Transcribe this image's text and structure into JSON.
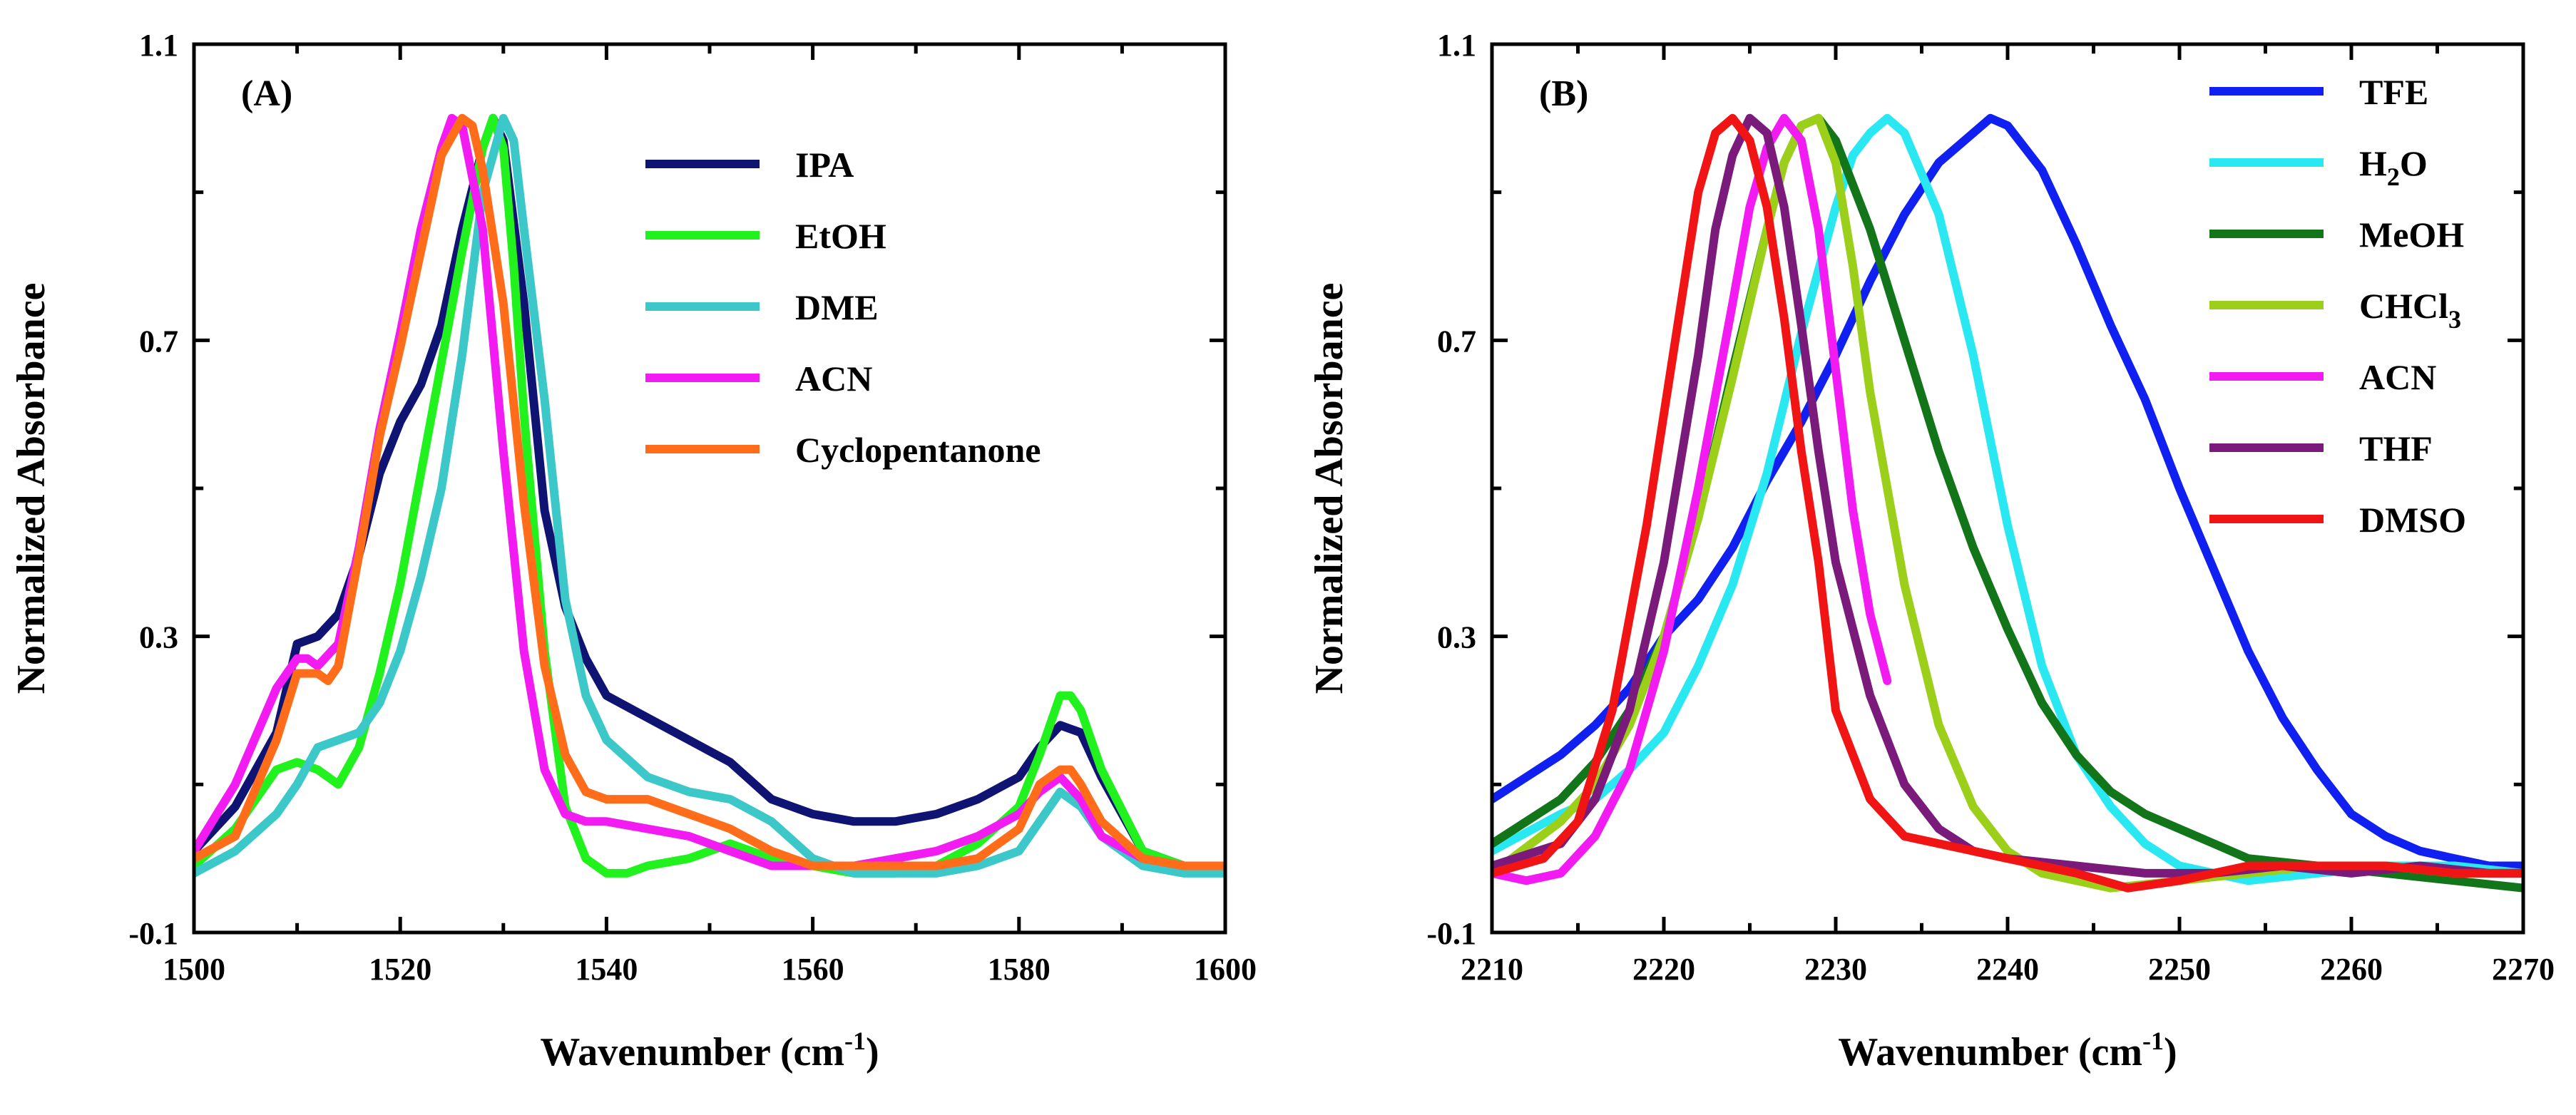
{
  "chart_data": [
    {
      "type": "line",
      "panel_label": "(A)",
      "xlabel": "Wavenumber (cm",
      "xlabel_sup": "-1",
      "xlabel_close": ")",
      "ylabel": "Normalized Absorbance",
      "xlim": [
        1500,
        1600
      ],
      "ylim": [
        -0.1,
        1.1
      ],
      "xticks": [
        1500,
        1520,
        1540,
        1560,
        1580,
        1600
      ],
      "yticks": [
        -0.1,
        0.3,
        0.7,
        1.1
      ],
      "yticks_minor": [
        0.1,
        0.5,
        0.9
      ],
      "ytick_labels": [
        "-0.1",
        "0.3",
        "0.7",
        "1.1"
      ],
      "legend": "top-right",
      "series": [
        {
          "name": "IPA",
          "name_sub": "",
          "color": "#0f1473",
          "x": [
            1500,
            1504,
            1508,
            1510,
            1512,
            1514,
            1516,
            1518,
            1520,
            1522,
            1524,
            1526,
            1528,
            1529,
            1530,
            1532,
            1534,
            1536,
            1538,
            1540,
            1544,
            1548,
            1552,
            1556,
            1560,
            1564,
            1568,
            1572,
            1576,
            1580,
            1582,
            1584,
            1586,
            1588,
            1592,
            1596,
            1600
          ],
          "y": [
            0.01,
            0.07,
            0.17,
            0.29,
            0.3,
            0.33,
            0.41,
            0.52,
            0.59,
            0.64,
            0.72,
            0.85,
            0.96,
            1.0,
            0.97,
            0.75,
            0.47,
            0.34,
            0.27,
            0.22,
            0.19,
            0.16,
            0.13,
            0.08,
            0.06,
            0.05,
            0.05,
            0.06,
            0.08,
            0.11,
            0.15,
            0.18,
            0.17,
            0.11,
            0.01,
            -0.01,
            -0.02
          ]
        },
        {
          "name": "EtOH",
          "name_sub": "",
          "color": "#21f21d",
          "x": [
            1500,
            1504,
            1508,
            1510,
            1512,
            1514,
            1516,
            1518,
            1520,
            1522,
            1524,
            1526,
            1528,
            1529,
            1530,
            1531,
            1532,
            1534,
            1536,
            1538,
            1540,
            1542,
            1544,
            1548,
            1552,
            1556,
            1560,
            1564,
            1568,
            1572,
            1576,
            1580,
            1582,
            1584,
            1585,
            1586,
            1588,
            1592,
            1596,
            1600
          ],
          "y": [
            -0.01,
            0.04,
            0.12,
            0.13,
            0.12,
            0.1,
            0.15,
            0.25,
            0.37,
            0.52,
            0.67,
            0.82,
            0.96,
            1.0,
            0.96,
            0.8,
            0.6,
            0.28,
            0.07,
            0.0,
            -0.02,
            -0.02,
            -0.01,
            0.0,
            0.02,
            0.0,
            -0.01,
            -0.02,
            -0.02,
            -0.01,
            0.02,
            0.07,
            0.14,
            0.22,
            0.22,
            0.2,
            0.12,
            0.01,
            -0.01,
            -0.02
          ]
        },
        {
          "name": "DME",
          "name_sub": "",
          "color": "#3cc8c8",
          "x": [
            1500,
            1504,
            1508,
            1510,
            1512,
            1514,
            1516,
            1518,
            1520,
            1522,
            1524,
            1526,
            1528,
            1530,
            1531,
            1532,
            1534,
            1536,
            1538,
            1540,
            1544,
            1548,
            1552,
            1556,
            1560,
            1564,
            1568,
            1572,
            1576,
            1580,
            1582,
            1584,
            1586,
            1588,
            1592,
            1596,
            1600
          ],
          "y": [
            -0.02,
            0.01,
            0.06,
            0.1,
            0.15,
            0.16,
            0.17,
            0.21,
            0.28,
            0.38,
            0.5,
            0.68,
            0.9,
            1.0,
            0.97,
            0.85,
            0.62,
            0.35,
            0.22,
            0.16,
            0.11,
            0.09,
            0.08,
            0.05,
            0.0,
            -0.02,
            -0.02,
            -0.02,
            -0.01,
            0.01,
            0.05,
            0.09,
            0.07,
            0.03,
            -0.01,
            -0.02,
            -0.02
          ]
        },
        {
          "name": "ACN",
          "name_sub": "",
          "color": "#f21cf2",
          "x": [
            1500,
            1504,
            1508,
            1510,
            1511,
            1512,
            1514,
            1516,
            1518,
            1520,
            1522,
            1524,
            1525,
            1526,
            1528,
            1530,
            1532,
            1534,
            1536,
            1538,
            1540,
            1544,
            1548,
            1552,
            1556,
            1560,
            1564,
            1568,
            1572,
            1576,
            1580,
            1582,
            1584,
            1586,
            1588,
            1592,
            1596,
            1600
          ],
          "y": [
            0.01,
            0.1,
            0.23,
            0.27,
            0.27,
            0.26,
            0.29,
            0.42,
            0.58,
            0.71,
            0.85,
            0.96,
            1.0,
            0.99,
            0.85,
            0.55,
            0.28,
            0.12,
            0.06,
            0.05,
            0.05,
            0.04,
            0.03,
            0.01,
            -0.01,
            -0.01,
            -0.01,
            0.0,
            0.01,
            0.03,
            0.06,
            0.09,
            0.11,
            0.08,
            0.03,
            0.0,
            -0.01,
            -0.01
          ]
        },
        {
          "name": "Cyclopentanone",
          "name_sub": "",
          "color": "#ff6d1a",
          "x": [
            1500,
            1504,
            1508,
            1510,
            1512,
            1513,
            1514,
            1516,
            1518,
            1520,
            1522,
            1524,
            1526,
            1527,
            1528,
            1530,
            1532,
            1534,
            1536,
            1538,
            1540,
            1544,
            1548,
            1552,
            1556,
            1560,
            1564,
            1568,
            1572,
            1576,
            1580,
            1582,
            1584,
            1585,
            1586,
            1588,
            1592,
            1596,
            1600
          ],
          "y": [
            0.0,
            0.03,
            0.16,
            0.25,
            0.25,
            0.24,
            0.26,
            0.41,
            0.57,
            0.69,
            0.82,
            0.95,
            1.0,
            0.99,
            0.93,
            0.75,
            0.48,
            0.26,
            0.14,
            0.09,
            0.08,
            0.08,
            0.06,
            0.04,
            0.01,
            -0.01,
            -0.01,
            -0.01,
            -0.01,
            0.0,
            0.04,
            0.1,
            0.12,
            0.12,
            0.1,
            0.05,
            0.0,
            -0.01,
            -0.01
          ]
        }
      ]
    },
    {
      "type": "line",
      "panel_label": "(B)",
      "xlabel": "Wavenumber (cm",
      "xlabel_sup": "-1",
      "xlabel_close": ")",
      "ylabel": "Normalized Absorbance",
      "xlim": [
        2210,
        2270
      ],
      "ylim": [
        -0.1,
        1.1
      ],
      "xticks": [
        2210,
        2220,
        2230,
        2240,
        2250,
        2260,
        2270
      ],
      "yticks": [
        -0.1,
        0.3,
        0.7,
        1.1
      ],
      "yticks_minor": [
        0.1,
        0.5,
        0.9
      ],
      "ytick_labels": [
        "-0.1",
        "0.3",
        "0.7",
        "1.1"
      ],
      "legend": "top-right",
      "series": [
        {
          "name": "TFE",
          "name_sub": "",
          "color": "#1020f0",
          "x": [
            2210,
            2212,
            2214,
            2216,
            2218,
            2220,
            2222,
            2224,
            2226,
            2228,
            2230,
            2232,
            2234,
            2236,
            2238,
            2239,
            2240,
            2242,
            2244,
            2246,
            2248,
            2250,
            2252,
            2254,
            2256,
            2258,
            2260,
            2262,
            2264,
            2266,
            2268,
            2270
          ],
          "y": [
            0.08,
            0.11,
            0.14,
            0.18,
            0.23,
            0.3,
            0.35,
            0.42,
            0.51,
            0.59,
            0.68,
            0.78,
            0.87,
            0.94,
            0.98,
            1.0,
            0.99,
            0.93,
            0.83,
            0.72,
            0.62,
            0.5,
            0.39,
            0.28,
            0.19,
            0.12,
            0.06,
            0.03,
            0.01,
            0.0,
            -0.01,
            -0.01
          ]
        },
        {
          "name": "H",
          "name_sub": "2",
          "name_tail": "O",
          "color": "#29e8f2",
          "x": [
            2210,
            2214,
            2216,
            2218,
            2220,
            2222,
            2224,
            2226,
            2228,
            2230,
            2231,
            2232,
            2233,
            2234,
            2236,
            2238,
            2240,
            2242,
            2244,
            2246,
            2248,
            2250,
            2254,
            2258,
            2262,
            2266,
            2270
          ],
          "y": [
            0.01,
            0.06,
            0.08,
            0.12,
            0.17,
            0.26,
            0.37,
            0.52,
            0.71,
            0.88,
            0.95,
            0.98,
            1.0,
            0.98,
            0.87,
            0.68,
            0.45,
            0.26,
            0.14,
            0.07,
            0.02,
            -0.01,
            -0.03,
            -0.02,
            -0.01,
            -0.01,
            -0.02
          ]
        },
        {
          "name": "MeOH",
          "name_sub": "",
          "color": "#12751a",
          "x": [
            2210,
            2212,
            2214,
            2216,
            2218,
            2220,
            2222,
            2224,
            2226,
            2227,
            2228,
            2229,
            2230,
            2232,
            2234,
            2236,
            2238,
            2240,
            2242,
            2244,
            2246,
            2248,
            2250,
            2252,
            2254,
            2258,
            2262,
            2266,
            2270
          ],
          "y": [
            0.02,
            0.05,
            0.08,
            0.13,
            0.2,
            0.3,
            0.46,
            0.66,
            0.85,
            0.94,
            0.99,
            1.0,
            0.97,
            0.85,
            0.7,
            0.55,
            0.42,
            0.31,
            0.21,
            0.14,
            0.09,
            0.06,
            0.04,
            0.02,
            0.0,
            -0.01,
            -0.02,
            -0.03,
            -0.04
          ]
        },
        {
          "name": "CHCl",
          "name_sub": "3",
          "color": "#9bcf1a",
          "x": [
            2210,
            2214,
            2216,
            2218,
            2220,
            2222,
            2224,
            2226,
            2227,
            2228,
            2229,
            2230,
            2231,
            2232,
            2234,
            2236,
            2238,
            2240,
            2242,
            2246,
            2250,
            2254,
            2258,
            2262,
            2266,
            2270
          ],
          "y": [
            -0.02,
            0.05,
            0.1,
            0.18,
            0.3,
            0.46,
            0.65,
            0.85,
            0.94,
            0.99,
            1.0,
            0.94,
            0.8,
            0.63,
            0.37,
            0.18,
            0.07,
            0.01,
            -0.02,
            -0.04,
            -0.03,
            -0.02,
            -0.01,
            -0.01,
            -0.02,
            -0.02
          ]
        },
        {
          "name": "ACN",
          "name_sub": "",
          "color": "#f21cf2",
          "x": [
            2210,
            2212,
            2214,
            2216,
            2218,
            2220,
            2222,
            2224,
            2225,
            2226,
            2227,
            2228,
            2229,
            2230,
            2231,
            2232,
            2233
          ],
          "y": [
            -0.02,
            -0.03,
            -0.02,
            0.03,
            0.12,
            0.28,
            0.5,
            0.75,
            0.88,
            0.96,
            1.0,
            0.97,
            0.85,
            0.66,
            0.47,
            0.33,
            0.24
          ]
        },
        {
          "name": "THF",
          "name_sub": "",
          "color": "#7a1a7a",
          "x": [
            2210,
            2214,
            2216,
            2218,
            2220,
            2222,
            2223,
            2224,
            2225,
            2226,
            2227,
            2228,
            2229,
            2230,
            2232,
            2234,
            2236,
            2238,
            2240,
            2244,
            2248,
            2252,
            2256,
            2260,
            2264,
            2268,
            2270
          ],
          "y": [
            -0.01,
            0.02,
            0.08,
            0.2,
            0.4,
            0.68,
            0.85,
            0.95,
            1.0,
            0.98,
            0.88,
            0.72,
            0.55,
            0.4,
            0.22,
            0.1,
            0.04,
            0.01,
            0.0,
            -0.01,
            -0.02,
            -0.02,
            -0.01,
            -0.02,
            -0.01,
            -0.02,
            -0.02
          ]
        },
        {
          "name": "DMSO",
          "name_sub": "",
          "color": "#f01414",
          "x": [
            2210,
            2213,
            2215,
            2217,
            2219,
            2221,
            2222,
            2223,
            2224,
            2225,
            2226,
            2227,
            2228,
            2229,
            2230,
            2232,
            2234,
            2236,
            2238,
            2240,
            2244,
            2247,
            2250,
            2254,
            2258,
            2262,
            2266,
            2270
          ],
          "y": [
            -0.02,
            0.0,
            0.05,
            0.2,
            0.45,
            0.75,
            0.9,
            0.98,
            1.0,
            0.97,
            0.88,
            0.73,
            0.55,
            0.4,
            0.2,
            0.08,
            0.03,
            0.02,
            0.01,
            0.0,
            -0.02,
            -0.04,
            -0.03,
            -0.01,
            -0.01,
            -0.01,
            -0.02,
            -0.02
          ]
        }
      ]
    }
  ]
}
